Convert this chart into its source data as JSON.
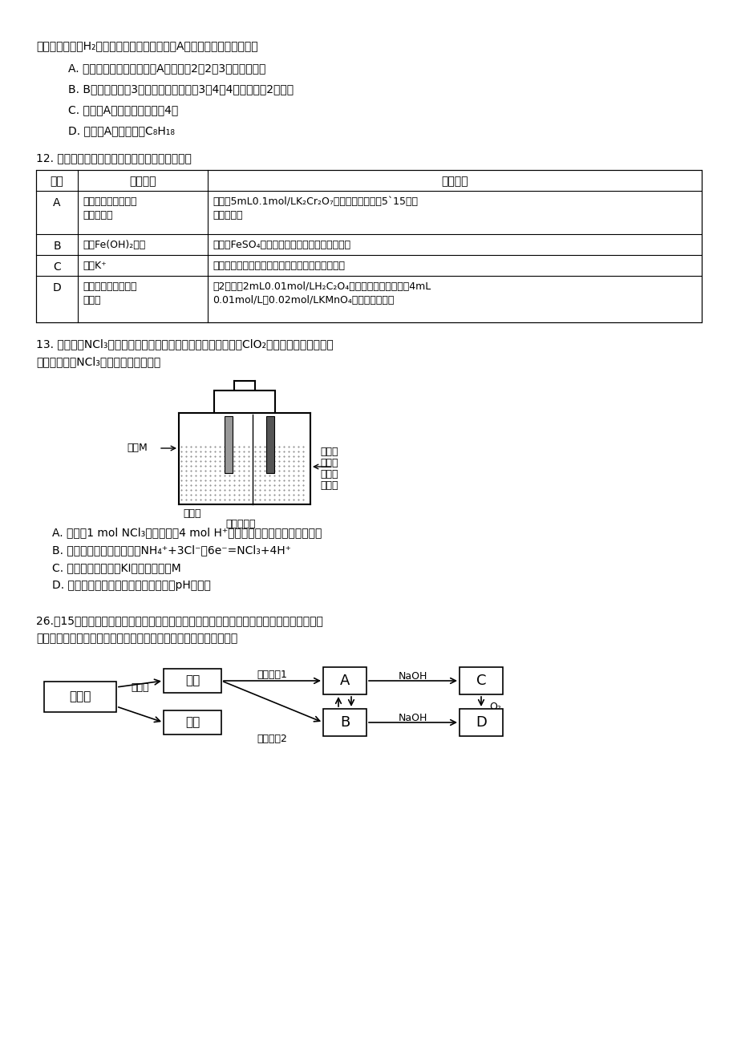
{
  "bg_color": "#ffffff",
  "s1_intro": "与等物质的量的H₂发生加成反应可得到有机物A。下列有关说法错误的是",
  "s1_options": [
    "A. 用系统命名法命名有机物A，名称为2，2，3－三甲基戊烷",
    "B. B的结构可能有3种，其中一种名称为3，4，4－三甲基－2－戊烯",
    "C. 有机物A的一氯取代物只有4种",
    "D. 有机物A的分子式为C₈H₁₈"
  ],
  "s2_head": "12. 为达到相应实验目的，下列实验设计可行的是",
  "s2_col_headers": [
    "编号",
    "实验目的",
    "实验过程"
  ],
  "s2_rows": [
    [
      "A",
      "探究浓度对化学平衡\n移动的影响",
      "向盛有5mL0.1mol/LK₂Cr₂O₇溶液的试管中滴入5`15滴浓\n硫酸，振荡"
    ],
    [
      "B",
      "观察Fe(OH)₂颜色",
      "向盛有FeSO₄溶液的试管中滴入氨水，立即振荡"
    ],
    [
      "C",
      "检验K⁺",
      "用玻璃棒蘸取待测液在无色火焰上灼烧，观察现象"
    ],
    [
      "D",
      "探究浓度对反应速率\n的影响",
      "向2支盛有2mL0.01mol/LH₂C₂O₄溶液的试管中分别加入4mL\n0.01mol/L和0.02mol/LKMnO₄溶液，观察现象"
    ]
  ],
  "s3_intro1": "13. 常温下，NCl₃是一种黄色黏稠状液体，是制备新型水消毒剂ClO₂的原料，可以采用如图",
  "s3_intro2": "所示装置制备NCl₃。下列说法正确的是",
  "s3_options": [
    "A. 每生成1 mol NCl₃，理论上有4 mol H⁺经质子交换膜从右侧向左侧迁移",
    "B. 石墨电极的电极反应式为NH₄⁺+3Cl⁻－6e⁻=NCl₃+4H⁺",
    "C. 可用湿润的淀粉－KI试纸检验气体M",
    "D. 电解过程中，质子交换膜右侧溶液的pH会减小"
  ],
  "s4_intro1": "26.（15分）铁是人体必需的微量元素，铁摄入不足可能引起缺铁性贫血。黑木耳中含有比较",
  "s4_intro2": "丰富的铁元素，某研究型学习小组同学测定某地黑木耳中铁的含量。"
}
